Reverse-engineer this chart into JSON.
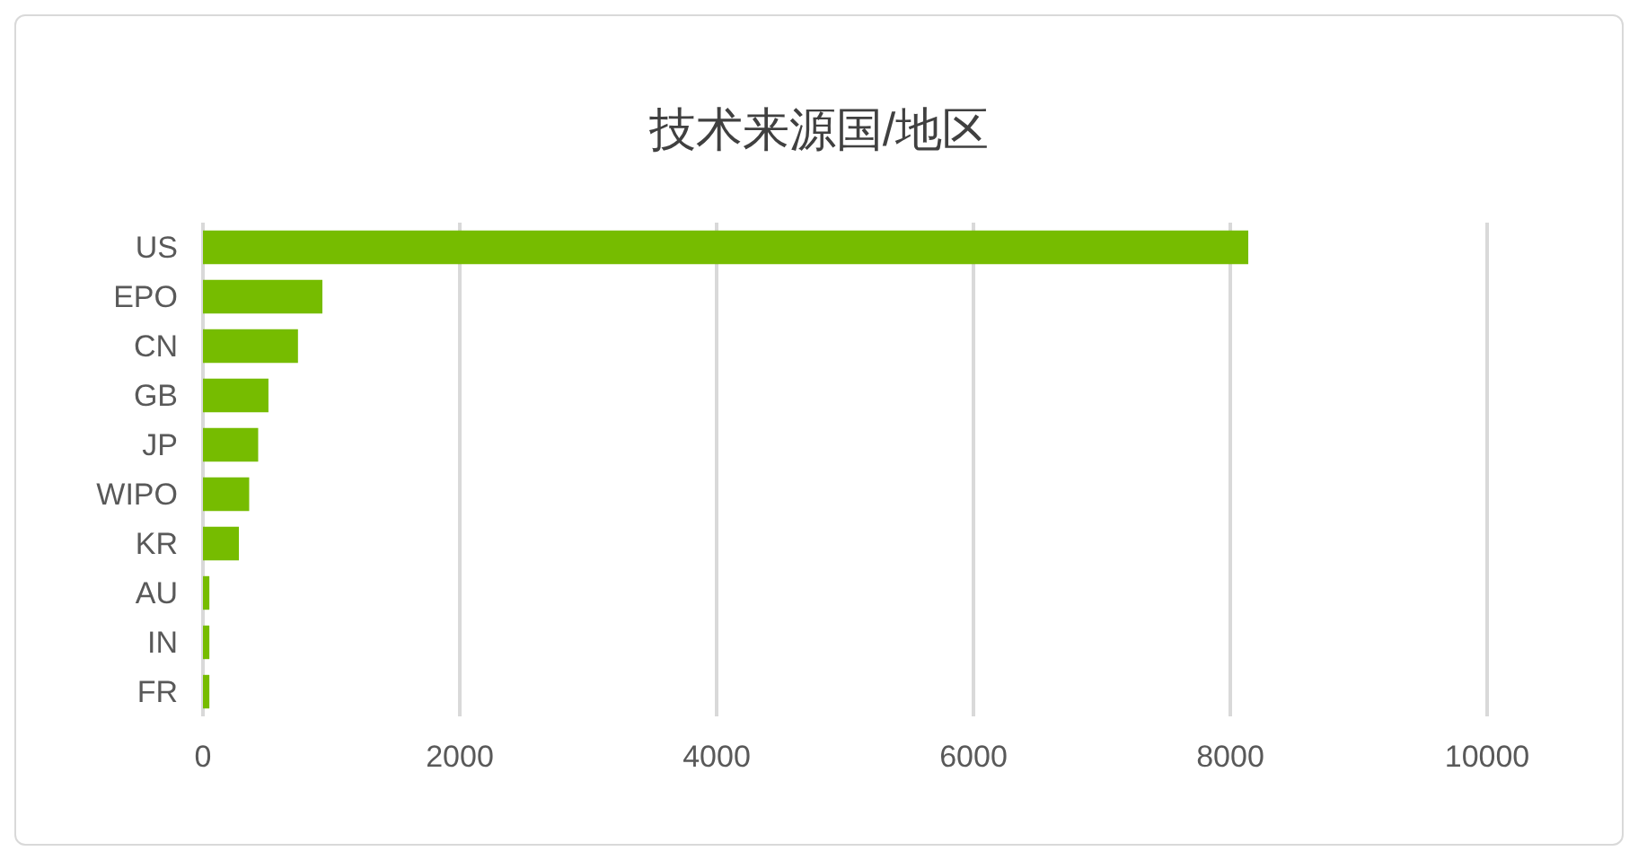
{
  "chart_data": {
    "type": "bar",
    "orientation": "horizontal",
    "title": "技术来源国/地区",
    "categories": [
      "US",
      "EPO",
      "CN",
      "GB",
      "JP",
      "WIPO",
      "KR",
      "AU",
      "IN",
      "FR"
    ],
    "values": [
      8140,
      930,
      740,
      510,
      430,
      360,
      280,
      50,
      50,
      50
    ],
    "color": "#76bc00",
    "xlim": [
      0,
      10000
    ],
    "xticks": [
      0,
      2000,
      4000,
      6000,
      8000,
      10000
    ],
    "grid": "x"
  }
}
